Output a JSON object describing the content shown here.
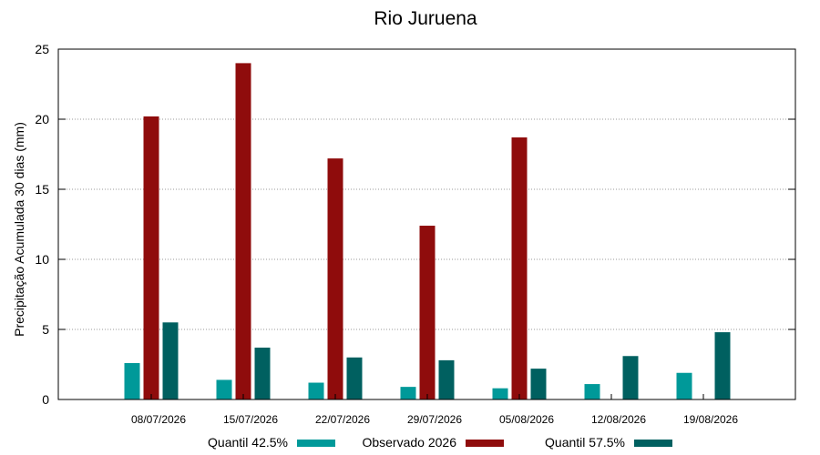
{
  "chart_data": {
    "type": "bar",
    "title": "Rio Juruena",
    "ylabel": "Precipitação Acumulada 30 dias (mm)",
    "xlabel": "",
    "ylim": [
      0,
      25
    ],
    "yticks": [
      0,
      5,
      10,
      15,
      20,
      25
    ],
    "grid": true,
    "legend_position": "bottom",
    "categories": [
      "08/07/2026",
      "15/07/2026",
      "22/07/2026",
      "29/07/2026",
      "05/08/2026",
      "12/08/2026",
      "19/08/2026"
    ],
    "series": [
      {
        "name": "Quantil 42.5%",
        "color": "#009999",
        "values": [
          2.6,
          1.4,
          1.2,
          0.9,
          0.8,
          1.1,
          1.9
        ]
      },
      {
        "name": "Observado 2026",
        "color": "#8f0c0c",
        "values": [
          20.2,
          24.0,
          17.2,
          12.4,
          18.7,
          null,
          null
        ]
      },
      {
        "name": "Quantil 57.5%",
        "color": "#006060",
        "values": [
          5.5,
          3.7,
          3.0,
          2.8,
          2.2,
          3.1,
          4.8
        ]
      }
    ]
  }
}
